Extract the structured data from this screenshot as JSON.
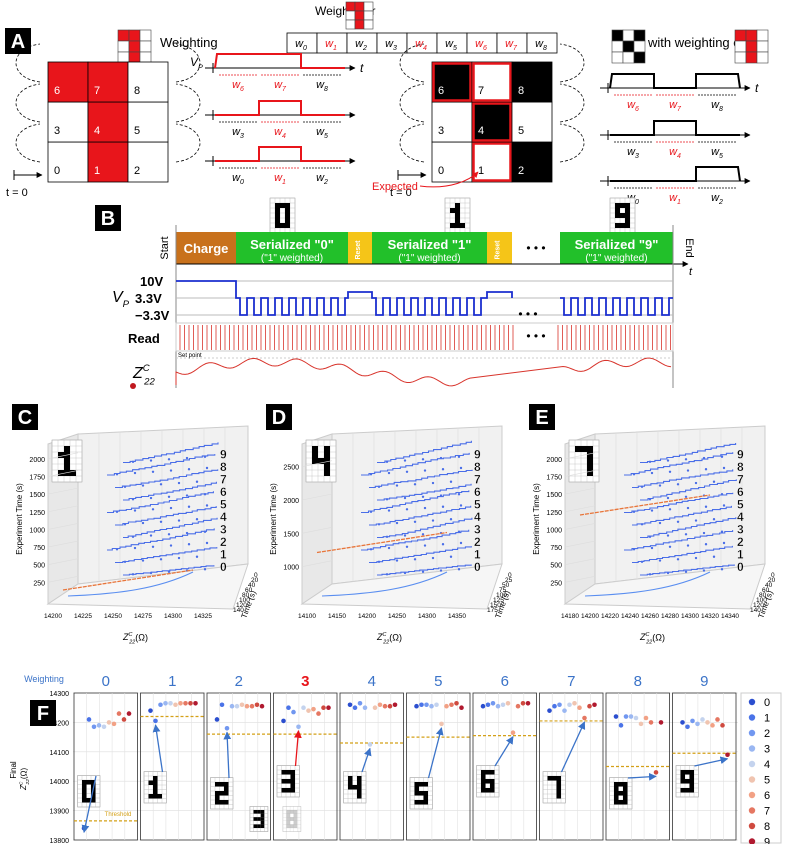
{
  "panel_a": {
    "label": "A",
    "weighting": "Weighting",
    "weights_for": "Weights for",
    "with_weighting_of": "with weighting of",
    "weight_symbol": "w",
    "weight_indices": [
      "0",
      "1",
      "2",
      "3",
      "4",
      "5",
      "6",
      "7",
      "8"
    ],
    "vp": {
      "main": "V",
      "sub": "P"
    },
    "t": "t",
    "t0": "t = 0",
    "cells": [
      "0",
      "1",
      "2",
      "3",
      "4",
      "5",
      "6",
      "7",
      "8"
    ],
    "expected": "Expected",
    "highlight_color": "#e8151b"
  },
  "panel_b": {
    "label": "B",
    "start": "Start",
    "end": "End",
    "t": "t",
    "segments": [
      {
        "text": "Charge",
        "color": "#c8711c"
      },
      {
        "text": "Serialized \"0\"",
        "sub": "(\"1\" weighted)",
        "color": "#22c02a"
      },
      {
        "text": "Reset",
        "color": "#f5c518"
      },
      {
        "text": "Serialized \"1\"",
        "sub": "(\"1\" weighted)",
        "color": "#22c02a"
      },
      {
        "text": "Reset",
        "color": "#f5c518"
      },
      {
        "text": "Serialized \"9\"",
        "sub": "(\"1\" weighted)",
        "color": "#22c02a"
      }
    ],
    "ellipsis": "• • •",
    "levels": [
      "10V",
      "3.3V",
      "−3.3V"
    ],
    "vp": {
      "main": "V",
      "sub": "P"
    },
    "read": "Read",
    "z": {
      "main": "Z",
      "sub": "22",
      "sup": "C"
    },
    "set_point": "Set point"
  },
  "panels_3d": [
    {
      "label": "C",
      "y_label": "Experiment Time (s)",
      "time_label": "Time (s)",
      "x_label": {
        "main": "Z",
        "sub": "22",
        "sup": "C",
        "unit": "(Ω)"
      },
      "yticks": [
        250,
        500,
        750,
        1000,
        1250,
        1500,
        1750,
        2000
      ],
      "xticks": [
        14200,
        14225,
        14250,
        14275,
        14300,
        14325
      ],
      "time_ticks": [
        0,
        20,
        40,
        60,
        80,
        100,
        120,
        140
      ],
      "digits": [
        "0",
        "1",
        "2",
        "3",
        "4",
        "5",
        "6",
        "7",
        "8",
        "9"
      ]
    },
    {
      "label": "D",
      "y_label": "Experiment Time (s)",
      "time_label": "Time (s)",
      "x_label": {
        "main": "Z",
        "sub": "22",
        "sup": "C",
        "unit": "(Ω)"
      },
      "yticks": [
        1000,
        1500,
        2000,
        2500
      ],
      "xticks": [
        14100,
        14150,
        14200,
        14250,
        14300,
        14350
      ],
      "time_ticks": [
        0,
        25,
        50,
        75,
        100,
        125,
        150,
        175
      ],
      "digits": [
        "0",
        "1",
        "2",
        "3",
        "4",
        "5",
        "6",
        "7",
        "8",
        "9"
      ]
    },
    {
      "label": "E",
      "y_label": "Experiment Time (s)",
      "time_label": "Time (s)",
      "x_label": {
        "main": "Z",
        "sub": "22",
        "sup": "C",
        "unit": "(Ω)"
      },
      "yticks": [
        250,
        500,
        750,
        1000,
        1250,
        1500,
        1750,
        2000
      ],
      "xticks": [
        14180,
        14200,
        14220,
        14240,
        14260,
        14280,
        14300,
        14320,
        14340
      ],
      "time_ticks": [
        0,
        20,
        40,
        60,
        80,
        100,
        120,
        140
      ],
      "digits": [
        "0",
        "1",
        "2",
        "3",
        "4",
        "5",
        "6",
        "7",
        "8",
        "9"
      ]
    }
  ],
  "panel_f": {
    "label": "F",
    "weighting": "Weighting",
    "y_label": {
      "main": "Z",
      "sub": "22",
      "sup": "C",
      "unit": "(Ω)",
      "prefix": "Final"
    },
    "ylim": [
      13800,
      14300
    ],
    "yticks": [
      13800,
      13900,
      14000,
      14100,
      14200,
      14300
    ],
    "threshold_label": "Threshold",
    "threshold_color": "#d4a017",
    "subplots": [
      {
        "title": "0",
        "title_color": "#3b73c8",
        "threshold": 13865,
        "values": [
          13840,
          14210,
          14185,
          14190,
          14185,
          14200,
          14195,
          14230,
          14210,
          14230
        ]
      },
      {
        "title": "1",
        "title_color": "#3b73c8",
        "threshold": 14220,
        "values": [
          14240,
          14205,
          14260,
          14265,
          14265,
          14260,
          14265,
          14265,
          14265,
          14265
        ]
      },
      {
        "title": "2",
        "title_color": "#3b73c8",
        "threshold": 14160,
        "values": [
          14210,
          14260,
          14180,
          14255,
          14255,
          14260,
          14255,
          14255,
          14260,
          14255
        ]
      },
      {
        "title": "3",
        "title_color": "#e8151b",
        "threshold": 14160,
        "values": [
          14205,
          14250,
          14235,
          14185,
          14250,
          14240,
          14245,
          14230,
          14250,
          14250
        ]
      },
      {
        "title": "4",
        "title_color": "#3b73c8",
        "threshold": 14130,
        "values": [
          14260,
          14250,
          14265,
          14250,
          14125,
          14250,
          14260,
          14255,
          14255,
          14260
        ]
      },
      {
        "title": "5",
        "title_color": "#3b73c8",
        "threshold": 14150,
        "values": [
          14255,
          14260,
          14260,
          14255,
          14260,
          14195,
          14255,
          14260,
          14265,
          14250
        ]
      },
      {
        "title": "6",
        "title_color": "#3b73c8",
        "threshold": 14155,
        "values": [
          14255,
          14260,
          14265,
          14255,
          14260,
          14265,
          14165,
          14255,
          14265,
          14265
        ]
      },
      {
        "title": "7",
        "title_color": "#3b73c8",
        "threshold": 14205,
        "values": [
          14240,
          14255,
          14260,
          14240,
          14260,
          14265,
          14250,
          14215,
          14255,
          14260
        ]
      },
      {
        "title": "8",
        "title_color": "#3b73c8",
        "threshold": 14050,
        "values": [
          14220,
          14190,
          14220,
          14220,
          14215,
          14195,
          14215,
          14200,
          14030,
          14200
        ]
      },
      {
        "title": "9",
        "title_color": "#3b73c8",
        "threshold": 14095,
        "values": [
          14200,
          14185,
          14205,
          14195,
          14210,
          14200,
          14190,
          14210,
          14190,
          14090
        ]
      }
    ],
    "legend": {
      "names": [
        "0",
        "1",
        "2",
        "3",
        "4",
        "5",
        "6",
        "7",
        "8",
        "9"
      ],
      "colors": [
        "#2b4ecf",
        "#4a73e8",
        "#7197f0",
        "#9ab7f2",
        "#c4d3ee",
        "#f0c4b0",
        "#f2a185",
        "#e57762",
        "#cf4a3f",
        "#b0192f"
      ]
    }
  }
}
